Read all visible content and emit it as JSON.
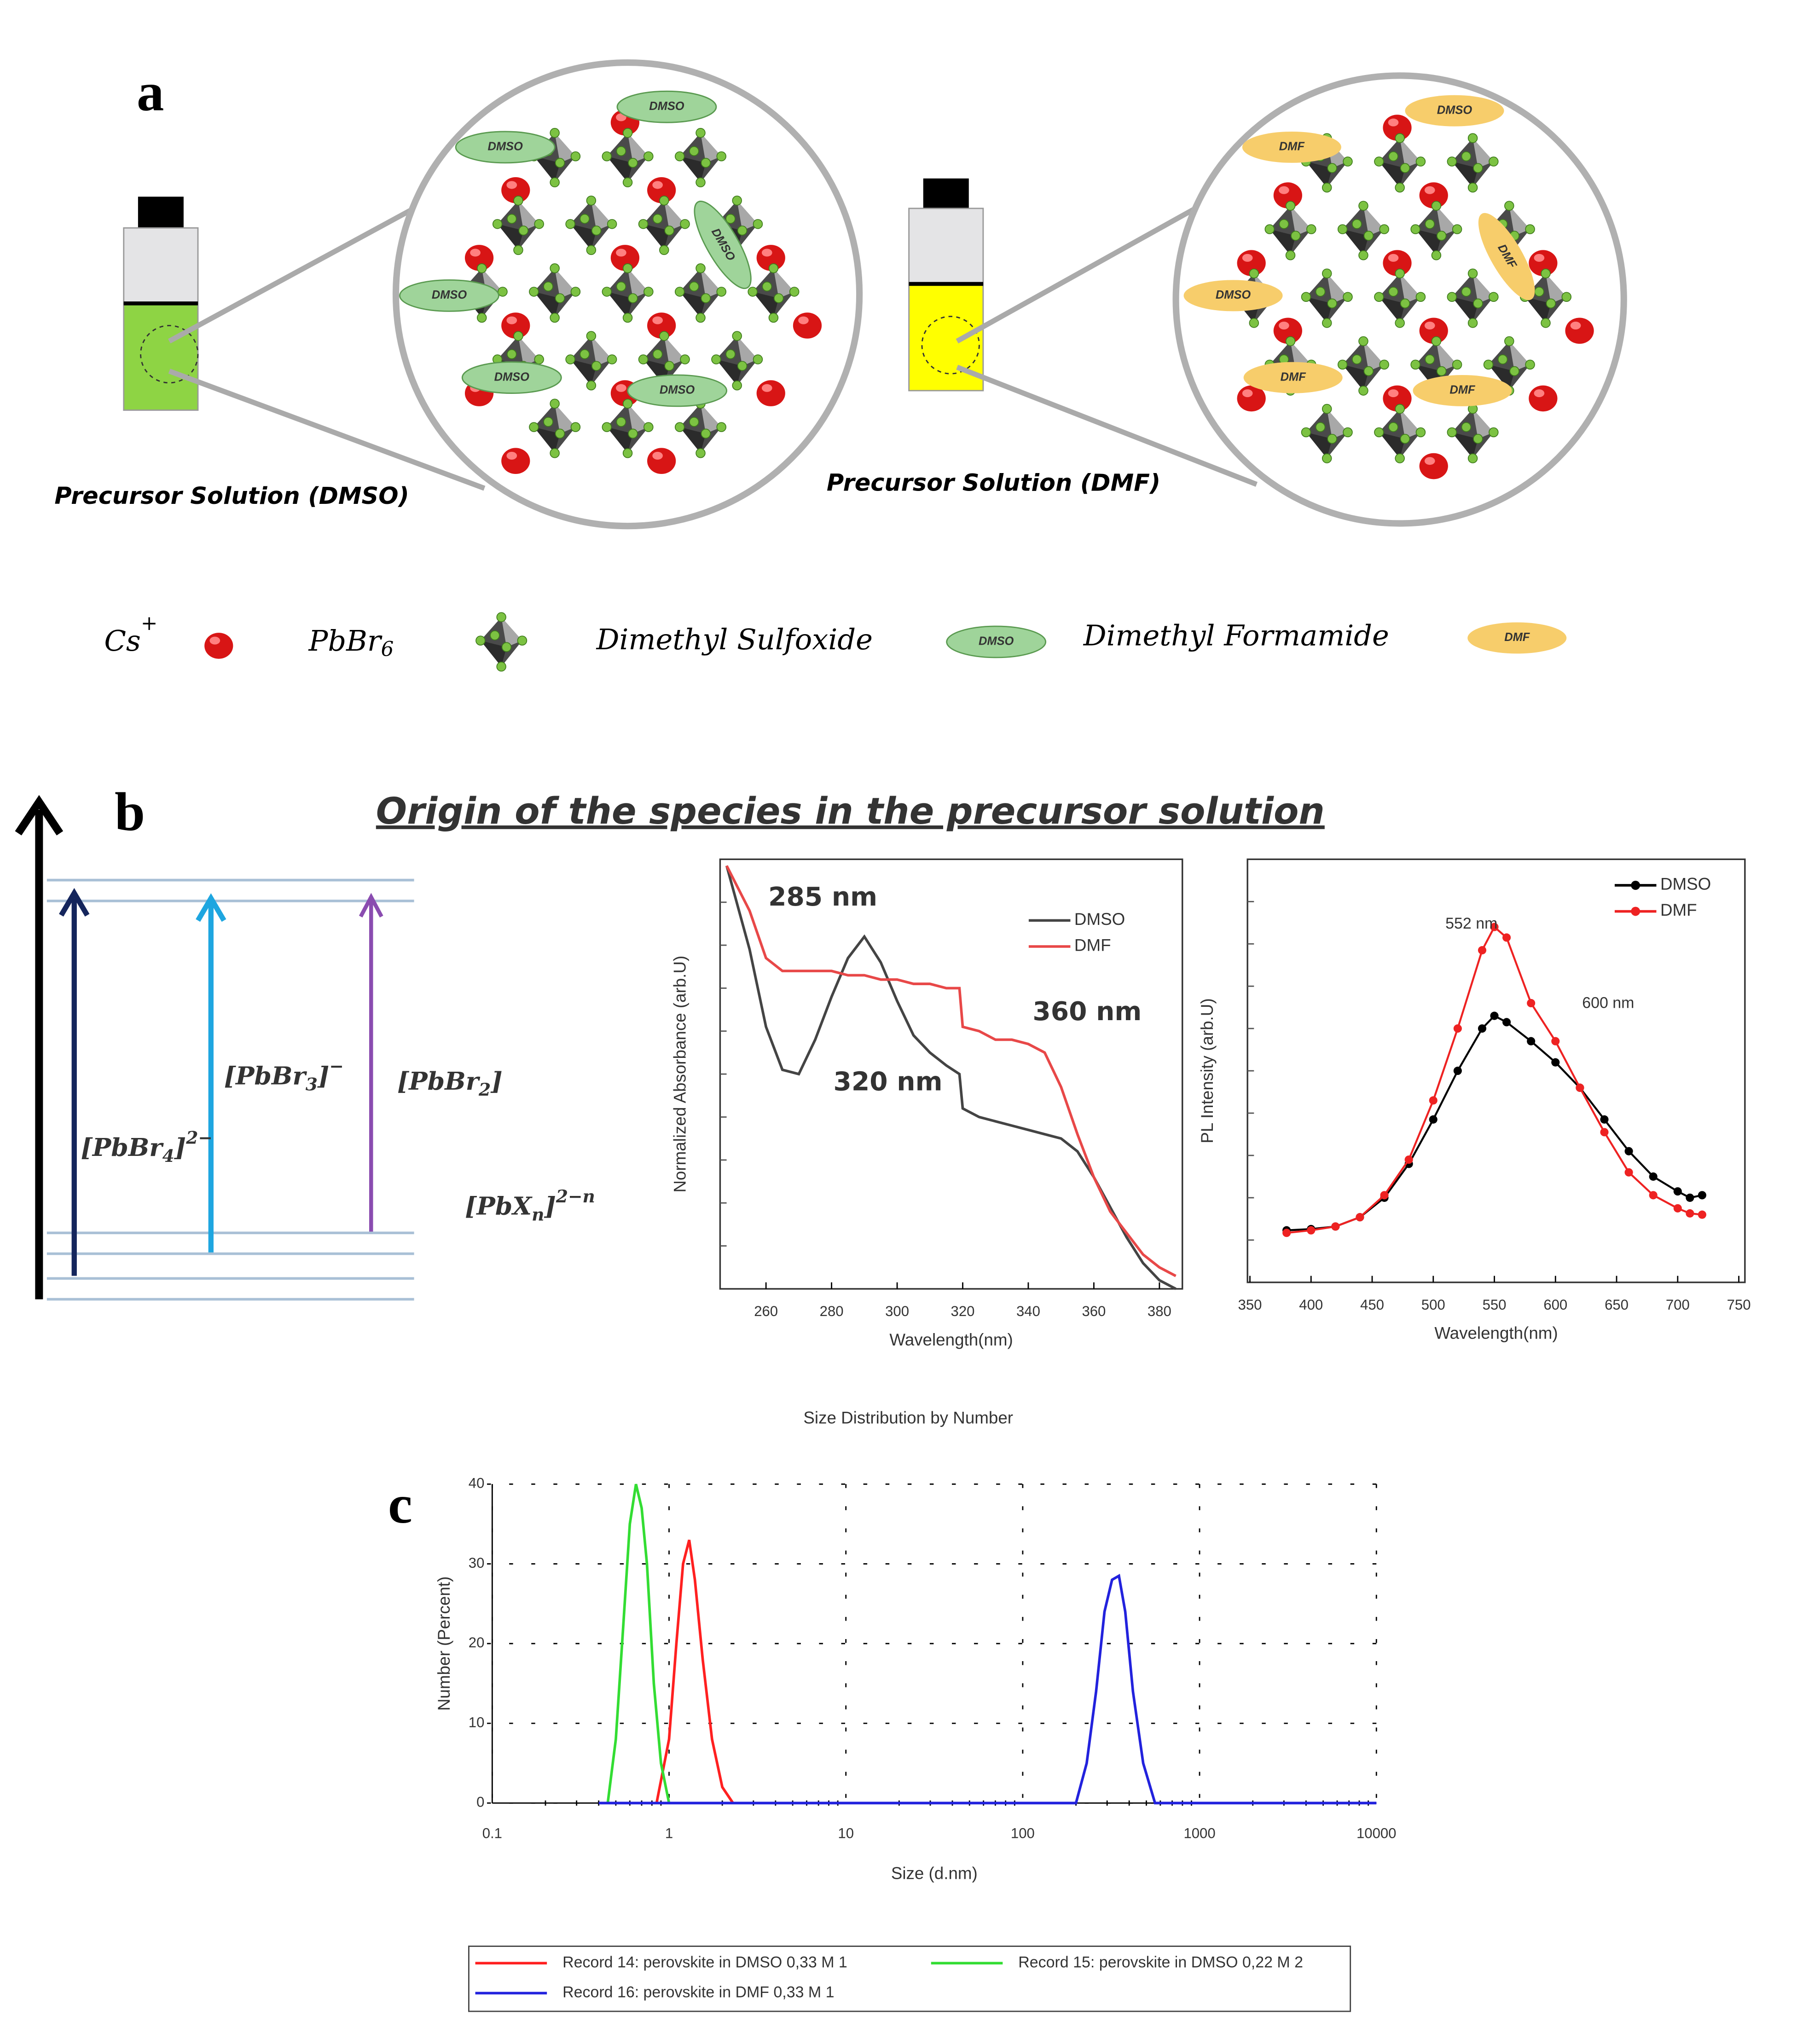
{
  "panel_labels": [
    "a",
    "b",
    "c"
  ],
  "panel_a": {
    "vial_labels": [
      "Precursor Solution (DMSO)",
      "Precursor Solution (DMF)"
    ],
    "circle_dmso_tags": [
      "DMSO",
      "DMSO",
      "DMSO",
      "DMSO",
      "DMSO",
      "DMSO"
    ],
    "circle_dmf_tags": [
      "DMSO",
      "DMF",
      "DMF",
      "DMSO",
      "DMF",
      "DMF"
    ],
    "legend": {
      "cs": {
        "text": "Cs",
        "sup": "+"
      },
      "pbbr6": {
        "text": "PbBr",
        "sub": "6"
      },
      "dmso_name": "Dimethyl Sulfoxide",
      "dmso_tag": "DMSO",
      "dmf_name": "Dimethyl Formamide",
      "dmf_tag": "DMF"
    }
  },
  "panel_b": {
    "title": "Origin of the species in the precursor solution",
    "species": [
      {
        "text": "[PbBr",
        "sub": "4",
        "end": "]",
        "sup": "2−"
      },
      {
        "text": "[PbBr",
        "sub": "3",
        "end": "]",
        "sup": "−"
      },
      {
        "text": "[PbBr",
        "sub": "2",
        "end": "]",
        "sup": ""
      },
      {
        "text": "[PbX",
        "sub": "n",
        "end": "]",
        "sup": "2−n"
      }
    ]
  },
  "chart_data": [
    {
      "type": "line",
      "y_label": "Normalized Absorbance (arb.U)",
      "x_label": "Wavelength(nm)",
      "x": [
        248,
        255,
        260,
        265,
        270,
        275,
        280,
        285,
        290,
        295,
        300,
        305,
        310,
        315,
        319,
        320,
        325,
        330,
        335,
        340,
        345,
        350,
        355,
        360,
        365,
        370,
        375,
        380,
        385
      ],
      "series": [
        {
          "name": "DMSO",
          "color": "#444444",
          "values": [
            0.985,
            0.79,
            0.61,
            0.51,
            0.5,
            0.58,
            0.68,
            0.77,
            0.82,
            0.76,
            0.67,
            0.59,
            0.55,
            0.52,
            0.5,
            0.42,
            0.4,
            0.39,
            0.38,
            0.37,
            0.36,
            0.35,
            0.32,
            0.26,
            0.19,
            0.12,
            0.06,
            0.02,
            0.0
          ]
        },
        {
          "name": "DMF",
          "color": "#e84848",
          "values": [
            0.985,
            0.88,
            0.77,
            0.74,
            0.74,
            0.74,
            0.74,
            0.73,
            0.73,
            0.72,
            0.72,
            0.71,
            0.71,
            0.7,
            0.7,
            0.61,
            0.6,
            0.58,
            0.58,
            0.57,
            0.55,
            0.47,
            0.36,
            0.26,
            0.18,
            0.13,
            0.08,
            0.05,
            0.03
          ]
        }
      ],
      "xlim": [
        246,
        387
      ],
      "xticks": [
        260,
        280,
        300,
        320,
        340,
        360,
        380
      ],
      "ylim": [
        0,
        1
      ],
      "annotations": [
        "285 nm",
        "320 nm",
        "360 nm"
      ]
    },
    {
      "type": "line",
      "y_label": "PL Intensity (arb.U)",
      "x_label": "Wavelength(nm)",
      "markers": true,
      "x": [
        380,
        400,
        420,
        440,
        460,
        480,
        500,
        520,
        540,
        550,
        560,
        580,
        600,
        620,
        640,
        660,
        680,
        700,
        710,
        720
      ],
      "series": [
        {
          "name": "DMSO",
          "color": "#000000",
          "values": [
            0.123,
            0.126,
            0.132,
            0.154,
            0.2,
            0.28,
            0.385,
            0.5,
            0.6,
            0.63,
            0.615,
            0.57,
            0.52,
            0.46,
            0.385,
            0.31,
            0.25,
            0.215,
            0.2,
            0.206
          ]
        },
        {
          "name": "DMF",
          "color": "#ee2222",
          "values": [
            0.117,
            0.123,
            0.132,
            0.154,
            0.206,
            0.29,
            0.43,
            0.6,
            0.785,
            0.84,
            0.815,
            0.66,
            0.57,
            0.46,
            0.355,
            0.26,
            0.206,
            0.175,
            0.163,
            0.16
          ]
        }
      ],
      "xlim": [
        348,
        755
      ],
      "xticks": [
        350,
        400,
        450,
        500,
        550,
        600,
        650,
        700,
        750
      ],
      "ylim": [
        0,
        1
      ],
      "annotations": [
        "552 nm",
        "600 nm"
      ]
    },
    {
      "type": "line",
      "title": "Size Distribution by Number",
      "y_label": "Number (Percent)",
      "x_label": "Size (d.nm)",
      "log_x": true,
      "grid": true,
      "series": [
        {
          "name": "Record 14: perovskite in DMSO 0,33 M 1",
          "color": "#ff2020",
          "x": [
            0.85,
            1.0,
            1.1,
            1.2,
            1.3,
            1.4,
            1.55,
            1.75,
            2.0,
            2.3
          ],
          "values": [
            0,
            8,
            20,
            30,
            33,
            28,
            18,
            8,
            2,
            0
          ]
        },
        {
          "name": "Record 15: perovskite in DMSO 0,22 M 2",
          "color": "#33dd33",
          "x": [
            0.45,
            0.5,
            0.55,
            0.6,
            0.65,
            0.7,
            0.75,
            0.82,
            0.9,
            1.0
          ],
          "values": [
            0,
            8,
            22,
            35,
            40,
            37,
            30,
            15,
            5,
            0
          ]
        },
        {
          "name": "Record 16: perovskite in DMF 0,33 M 1",
          "color": "#2222dd",
          "x": [
            0.4,
            200,
            230,
            260,
            290,
            320,
            350,
            380,
            420,
            480,
            560,
            10000
          ],
          "values": [
            0,
            0,
            5,
            14,
            24,
            28,
            28.5,
            24,
            14,
            5,
            0,
            0
          ]
        }
      ],
      "xlim": [
        0.1,
        10000
      ],
      "xticks": [
        0.1,
        1,
        10,
        100,
        1000,
        10000
      ],
      "ylim": [
        0,
        40
      ],
      "yticks": [
        0,
        10,
        20,
        30,
        40
      ]
    }
  ]
}
